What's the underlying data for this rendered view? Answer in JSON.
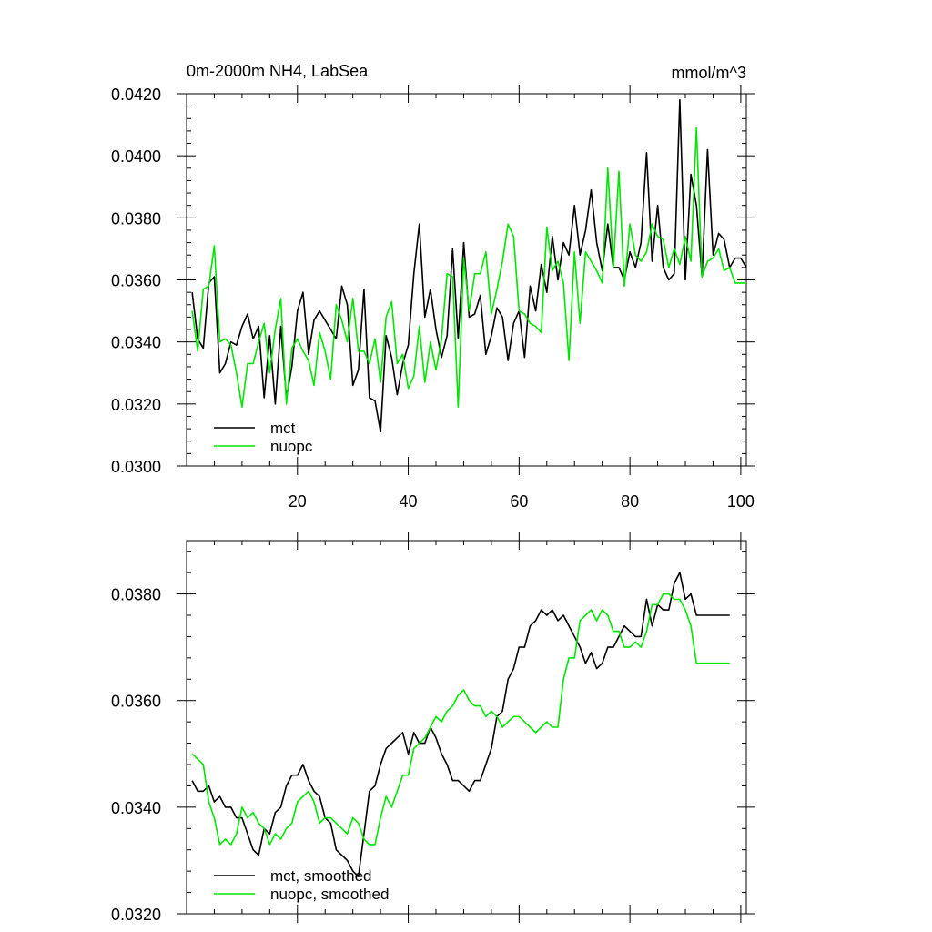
{
  "chart_data": [
    {
      "type": "line",
      "title": "0m-2000m NH4, LabSea",
      "units": "mmol/m^3",
      "xlim": [
        0,
        101
      ],
      "ylim": [
        0.03,
        0.042
      ],
      "xticks": [
        20,
        40,
        60,
        80,
        100
      ],
      "xtick_labels": [
        "20",
        "40",
        "60",
        "80",
        "100"
      ],
      "yticks": [
        0.03,
        0.032,
        0.034,
        0.036,
        0.038,
        0.04,
        0.042
      ],
      "ytick_labels": [
        "0.0300",
        "0.0320",
        "0.0340",
        "0.0360",
        "0.0380",
        "0.0400",
        "0.0420"
      ],
      "legend_position": "bottom-left",
      "series": [
        {
          "name": "mct",
          "color": "#000000",
          "x": [
            1,
            2,
            3,
            4,
            5,
            6,
            7,
            8,
            9,
            10,
            11,
            12,
            13,
            14,
            15,
            16,
            17,
            18,
            19,
            20,
            21,
            22,
            23,
            24,
            25,
            26,
            27,
            28,
            29,
            30,
            31,
            32,
            33,
            34,
            35,
            36,
            37,
            38,
            39,
            40,
            41,
            42,
            43,
            44,
            45,
            46,
            47,
            48,
            49,
            50,
            51,
            52,
            53,
            54,
            55,
            56,
            57,
            58,
            59,
            60,
            61,
            62,
            63,
            64,
            65,
            66,
            67,
            68,
            69,
            70,
            71,
            72,
            73,
            74,
            75,
            76,
            77,
            78,
            79,
            80,
            81,
            82,
            83,
            84,
            85,
            86,
            87,
            88,
            89,
            90,
            91,
            92,
            93,
            94,
            95,
            96,
            97,
            98,
            99,
            100,
            101
          ],
          "values": [
            0.0356,
            0.0341,
            0.0338,
            0.0359,
            0.0361,
            0.033,
            0.0333,
            0.034,
            0.0339,
            0.0345,
            0.0349,
            0.0341,
            0.0345,
            0.0322,
            0.0342,
            0.032,
            0.0345,
            0.0322,
            0.0332,
            0.035,
            0.0356,
            0.0336,
            0.0347,
            0.035,
            0.0347,
            0.0344,
            0.0341,
            0.0358,
            0.0352,
            0.0326,
            0.0331,
            0.0357,
            0.0322,
            0.0321,
            0.0311,
            0.0342,
            0.0335,
            0.0323,
            0.0333,
            0.0339,
            0.0362,
            0.0378,
            0.0348,
            0.0357,
            0.0344,
            0.0335,
            0.0342,
            0.037,
            0.0341,
            0.0372,
            0.0348,
            0.0349,
            0.0355,
            0.0336,
            0.0342,
            0.0351,
            0.0348,
            0.0334,
            0.0346,
            0.035,
            0.0335,
            0.0358,
            0.035,
            0.0365,
            0.0356,
            0.0374,
            0.036,
            0.0372,
            0.0368,
            0.0384,
            0.0368,
            0.0376,
            0.0389,
            0.0372,
            0.0363,
            0.0378,
            0.0364,
            0.0364,
            0.036,
            0.0369,
            0.0364,
            0.0372,
            0.0401,
            0.0366,
            0.0384,
            0.0364,
            0.036,
            0.0362,
            0.0418,
            0.036,
            0.0394,
            0.0384,
            0.0361,
            0.0402,
            0.0368,
            0.0375,
            0.0373,
            0.0364,
            0.0367,
            0.0367,
            0.0364
          ],
          "smoothed": []
        },
        {
          "name": "nuopc",
          "color": "#00e600",
          "x": [
            1,
            2,
            3,
            4,
            5,
            6,
            7,
            8,
            9,
            10,
            11,
            12,
            13,
            14,
            15,
            16,
            17,
            18,
            19,
            20,
            21,
            22,
            23,
            24,
            25,
            26,
            27,
            28,
            29,
            30,
            31,
            32,
            33,
            34,
            35,
            36,
            37,
            38,
            39,
            40,
            41,
            42,
            43,
            44,
            45,
            46,
            47,
            48,
            49,
            50,
            51,
            52,
            53,
            54,
            55,
            56,
            57,
            58,
            59,
            60,
            61,
            62,
            63,
            64,
            65,
            66,
            67,
            68,
            69,
            70,
            71,
            72,
            73,
            74,
            75,
            76,
            77,
            78,
            79,
            80,
            81,
            82,
            83,
            84,
            85,
            86,
            87,
            88,
            89,
            90,
            91,
            92,
            93,
            94,
            95,
            96,
            97,
            98,
            99,
            100,
            101
          ],
          "values": [
            0.035,
            0.0337,
            0.0357,
            0.0358,
            0.0371,
            0.034,
            0.0341,
            0.0339,
            0.033,
            0.0319,
            0.0333,
            0.0333,
            0.034,
            0.0346,
            0.033,
            0.0344,
            0.0354,
            0.032,
            0.0338,
            0.0341,
            0.0337,
            0.0334,
            0.0326,
            0.0343,
            0.0337,
            0.0328,
            0.0352,
            0.0347,
            0.034,
            0.0354,
            0.0337,
            0.0337,
            0.0333,
            0.0341,
            0.0327,
            0.0348,
            0.0353,
            0.0333,
            0.0336,
            0.0325,
            0.0329,
            0.0345,
            0.0327,
            0.034,
            0.0331,
            0.0341,
            0.0362,
            0.0361,
            0.0319,
            0.0367,
            0.035,
            0.0362,
            0.0362,
            0.0369,
            0.0349,
            0.0357,
            0.0366,
            0.0378,
            0.0374,
            0.035,
            0.0349,
            0.0346,
            0.0345,
            0.0343,
            0.0377,
            0.0363,
            0.0366,
            0.0359,
            0.0334,
            0.0369,
            0.0346,
            0.0369,
            0.0366,
            0.0363,
            0.0359,
            0.0396,
            0.0364,
            0.0395,
            0.0358,
            0.0378,
            0.0368,
            0.0366,
            0.0369,
            0.0378,
            0.0374,
            0.0373,
            0.0364,
            0.037,
            0.0365,
            0.0374,
            0.0366,
            0.0409,
            0.0361,
            0.0366,
            0.0367,
            0.037,
            0.0363,
            0.0364,
            0.0359,
            0.0359,
            0.0359
          ]
        }
      ]
    },
    {
      "type": "line",
      "title": "",
      "xlim": [
        0,
        101
      ],
      "ylim": [
        0.032,
        0.039
      ],
      "xticks": [
        20,
        40,
        60,
        80,
        100
      ],
      "yticks": [
        0.032,
        0.034,
        0.036,
        0.038
      ],
      "ytick_labels": [
        "0.0320",
        "0.0340",
        "0.0360",
        "0.0380"
      ],
      "legend_position": "bottom-left",
      "series": [
        {
          "name": "mct, smoothed",
          "color": "#000000",
          "x": [
            1,
            2,
            3,
            4,
            5,
            6,
            7,
            8,
            9,
            10,
            11,
            12,
            13,
            14,
            15,
            16,
            17,
            18,
            19,
            20,
            21,
            22,
            23,
            24,
            25,
            26,
            27,
            28,
            29,
            30,
            31,
            32,
            33,
            34,
            35,
            36,
            37,
            38,
            39,
            40,
            41,
            42,
            43,
            44,
            45,
            46,
            47,
            48,
            49,
            50,
            51,
            52,
            53,
            54,
            55,
            56,
            57,
            58,
            59,
            60,
            61,
            62,
            63,
            64,
            65,
            66,
            67,
            68,
            69,
            70,
            71,
            72,
            73,
            74,
            75,
            76,
            77,
            78,
            79,
            80,
            81,
            82,
            83,
            84,
            85,
            86,
            87,
            88,
            89,
            90,
            91,
            92,
            93,
            94,
            95,
            96,
            97,
            98
          ],
          "values": [
            0.0345,
            0.0343,
            0.0343,
            0.0344,
            0.0341,
            0.0342,
            0.034,
            0.034,
            0.0338,
            0.0338,
            0.0335,
            0.0332,
            0.0331,
            0.0336,
            0.0335,
            0.0339,
            0.034,
            0.0344,
            0.0346,
            0.0346,
            0.0348,
            0.0345,
            0.0343,
            0.0342,
            0.0338,
            0.0337,
            0.0332,
            0.0331,
            0.033,
            0.0328,
            0.0327,
            0.0335,
            0.0343,
            0.0344,
            0.0348,
            0.0351,
            0.0352,
            0.0353,
            0.0354,
            0.035,
            0.0354,
            0.0352,
            0.0352,
            0.0355,
            0.0353,
            0.035,
            0.0348,
            0.0345,
            0.0345,
            0.0344,
            0.0343,
            0.0345,
            0.0345,
            0.0348,
            0.0351,
            0.0357,
            0.0358,
            0.0364,
            0.0366,
            0.037,
            0.037,
            0.0374,
            0.0375,
            0.0377,
            0.0376,
            0.0377,
            0.0375,
            0.0376,
            0.0374,
            0.0372,
            0.037,
            0.0367,
            0.0369,
            0.0366,
            0.0367,
            0.037,
            0.037,
            0.0372,
            0.0374,
            0.0373,
            0.0372,
            0.0372,
            0.0379,
            0.0374,
            0.0378,
            0.0377,
            0.0377,
            0.0382,
            0.0384,
            0.0379,
            0.038,
            0.0376,
            0.0376,
            0.0376,
            0.0376,
            0.0376,
            0.0376,
            0.0376
          ]
        },
        {
          "name": "nuopc, smoothed",
          "color": "#00e600",
          "x": [
            1,
            2,
            3,
            4,
            5,
            6,
            7,
            8,
            9,
            10,
            11,
            12,
            13,
            14,
            15,
            16,
            17,
            18,
            19,
            20,
            21,
            22,
            23,
            24,
            25,
            26,
            27,
            28,
            29,
            30,
            31,
            32,
            33,
            34,
            35,
            36,
            37,
            38,
            39,
            40,
            41,
            42,
            43,
            44,
            45,
            46,
            47,
            48,
            49,
            50,
            51,
            52,
            53,
            54,
            55,
            56,
            57,
            58,
            59,
            60,
            61,
            62,
            63,
            64,
            65,
            66,
            67,
            68,
            69,
            70,
            71,
            72,
            73,
            74,
            75,
            76,
            77,
            78,
            79,
            80,
            81,
            82,
            83,
            84,
            85,
            86,
            87,
            88,
            89,
            90,
            91,
            92,
            93,
            94,
            95,
            96,
            97,
            98
          ],
          "values": [
            0.035,
            0.0349,
            0.0348,
            0.0341,
            0.0338,
            0.0333,
            0.0334,
            0.0333,
            0.0335,
            0.034,
            0.0338,
            0.0339,
            0.0337,
            0.0336,
            0.0333,
            0.0335,
            0.0334,
            0.0336,
            0.0337,
            0.0341,
            0.0342,
            0.0343,
            0.0341,
            0.0337,
            0.0338,
            0.0338,
            0.0337,
            0.0336,
            0.0335,
            0.0338,
            0.0337,
            0.0334,
            0.0333,
            0.0333,
            0.0338,
            0.0342,
            0.034,
            0.0343,
            0.0346,
            0.0346,
            0.0351,
            0.0352,
            0.0353,
            0.0355,
            0.0357,
            0.0356,
            0.0358,
            0.0359,
            0.0361,
            0.0362,
            0.036,
            0.0359,
            0.0359,
            0.0357,
            0.0358,
            0.0357,
            0.0355,
            0.0356,
            0.0357,
            0.0357,
            0.0356,
            0.0355,
            0.0354,
            0.0355,
            0.0356,
            0.0355,
            0.0355,
            0.0364,
            0.0368,
            0.0368,
            0.0375,
            0.0376,
            0.0377,
            0.0375,
            0.0377,
            0.0376,
            0.0373,
            0.0373,
            0.037,
            0.037,
            0.0371,
            0.037,
            0.0373,
            0.0378,
            0.0378,
            0.038,
            0.038,
            0.0379,
            0.0379,
            0.0377,
            0.0374,
            0.0367,
            0.0367,
            0.0367,
            0.0367,
            0.0367,
            0.0367,
            0.0367
          ]
        }
      ]
    }
  ]
}
